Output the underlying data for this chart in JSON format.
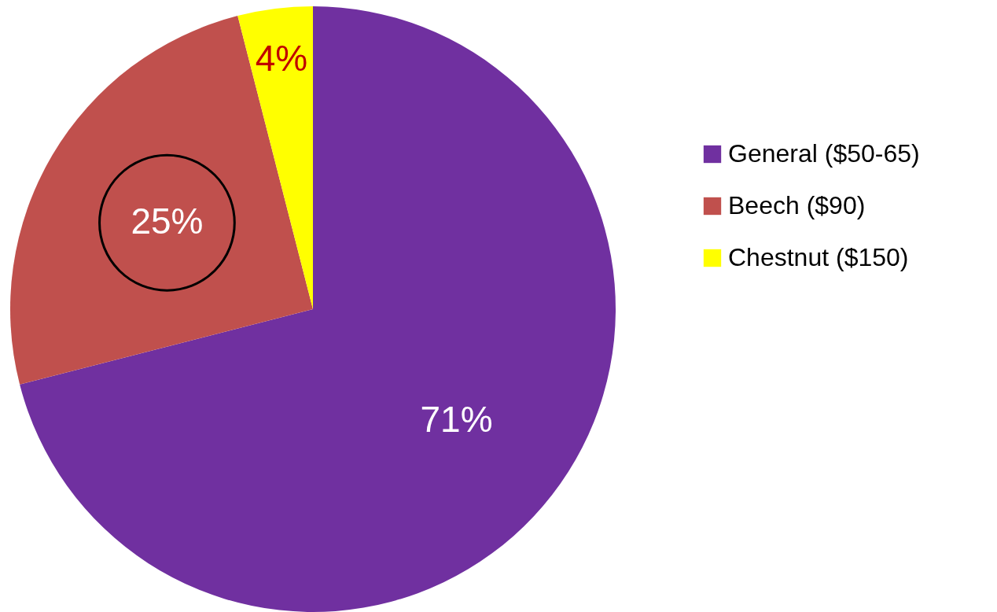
{
  "chart_data": {
    "type": "pie",
    "categories": [
      "General ($50-65)",
      "Beech ($90)",
      "Chestnut ($150)"
    ],
    "values": [
      71,
      25,
      4
    ],
    "colors": [
      "#7030a0",
      "#c0504d",
      "#ffff00"
    ],
    "value_labels": [
      "71%",
      "25%",
      "4%"
    ],
    "legend": "right"
  }
}
